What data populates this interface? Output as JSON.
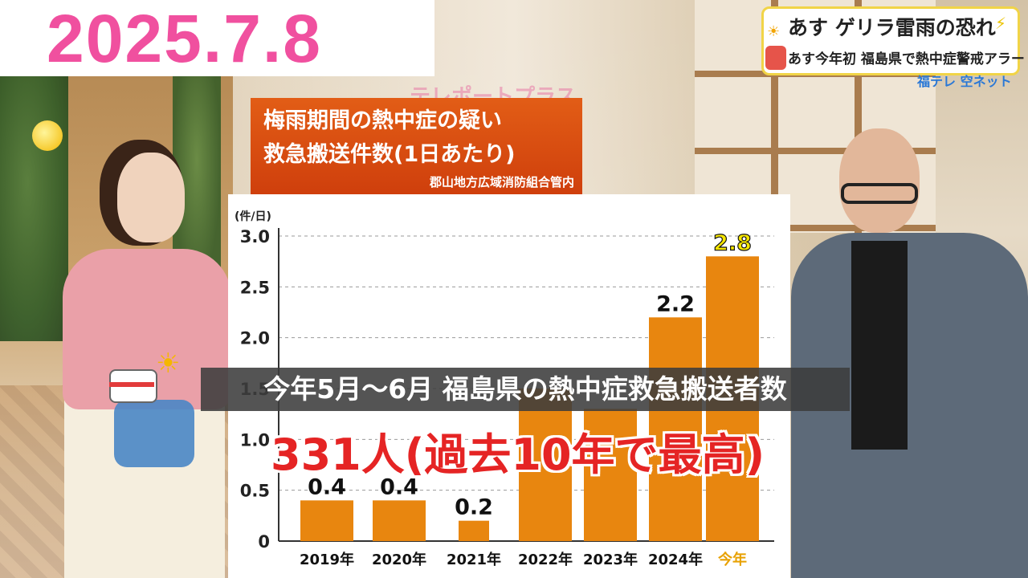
{
  "date": "2025.7.8",
  "headline": {
    "line1": "あす ゲリラ雷雨の恐れ",
    "line2": "あす今年初 福島県で熱中症警戒アラート",
    "sun_icon": "sun-icon",
    "bolt_icon": "thunder-cloud-icon"
  },
  "channel": "福テレ 空ネット",
  "studio_logo": "テレポートプラス",
  "chart_title": {
    "line1": "梅雨期間の熱中症の疑い",
    "line2": "救急搬送件数(1日あたり)",
    "source": "郡山地方広域消防組合管内"
  },
  "caption": "今年5月〜6月 福島県の熱中症救急搬送者数",
  "big_stat": "331人(過去10年で最高)",
  "chart_data": {
    "type": "bar",
    "title": "梅雨期間の熱中症の疑い 救急搬送件数(1日あたり)",
    "unit_label": "(件/日)",
    "categories": [
      "2019年",
      "2020年",
      "2021年",
      "2022年",
      "2023年",
      "2024年",
      "今年"
    ],
    "values": [
      0.4,
      0.4,
      0.2,
      1.5,
      1.3,
      2.2,
      2.8
    ],
    "data_labels": [
      "0.4",
      "0.4",
      "0.2",
      "",
      "",
      "2.2",
      "2.8"
    ],
    "yticks": [
      "0",
      "0.5",
      "1.0",
      "1.5",
      "2.0",
      "2.5",
      "3.0"
    ],
    "ylim": [
      0,
      3.0
    ],
    "grid": true,
    "bar_color": "#e8860f",
    "highlight_label_color": "#f5e500",
    "highlight_category_color": "#e8a100"
  }
}
